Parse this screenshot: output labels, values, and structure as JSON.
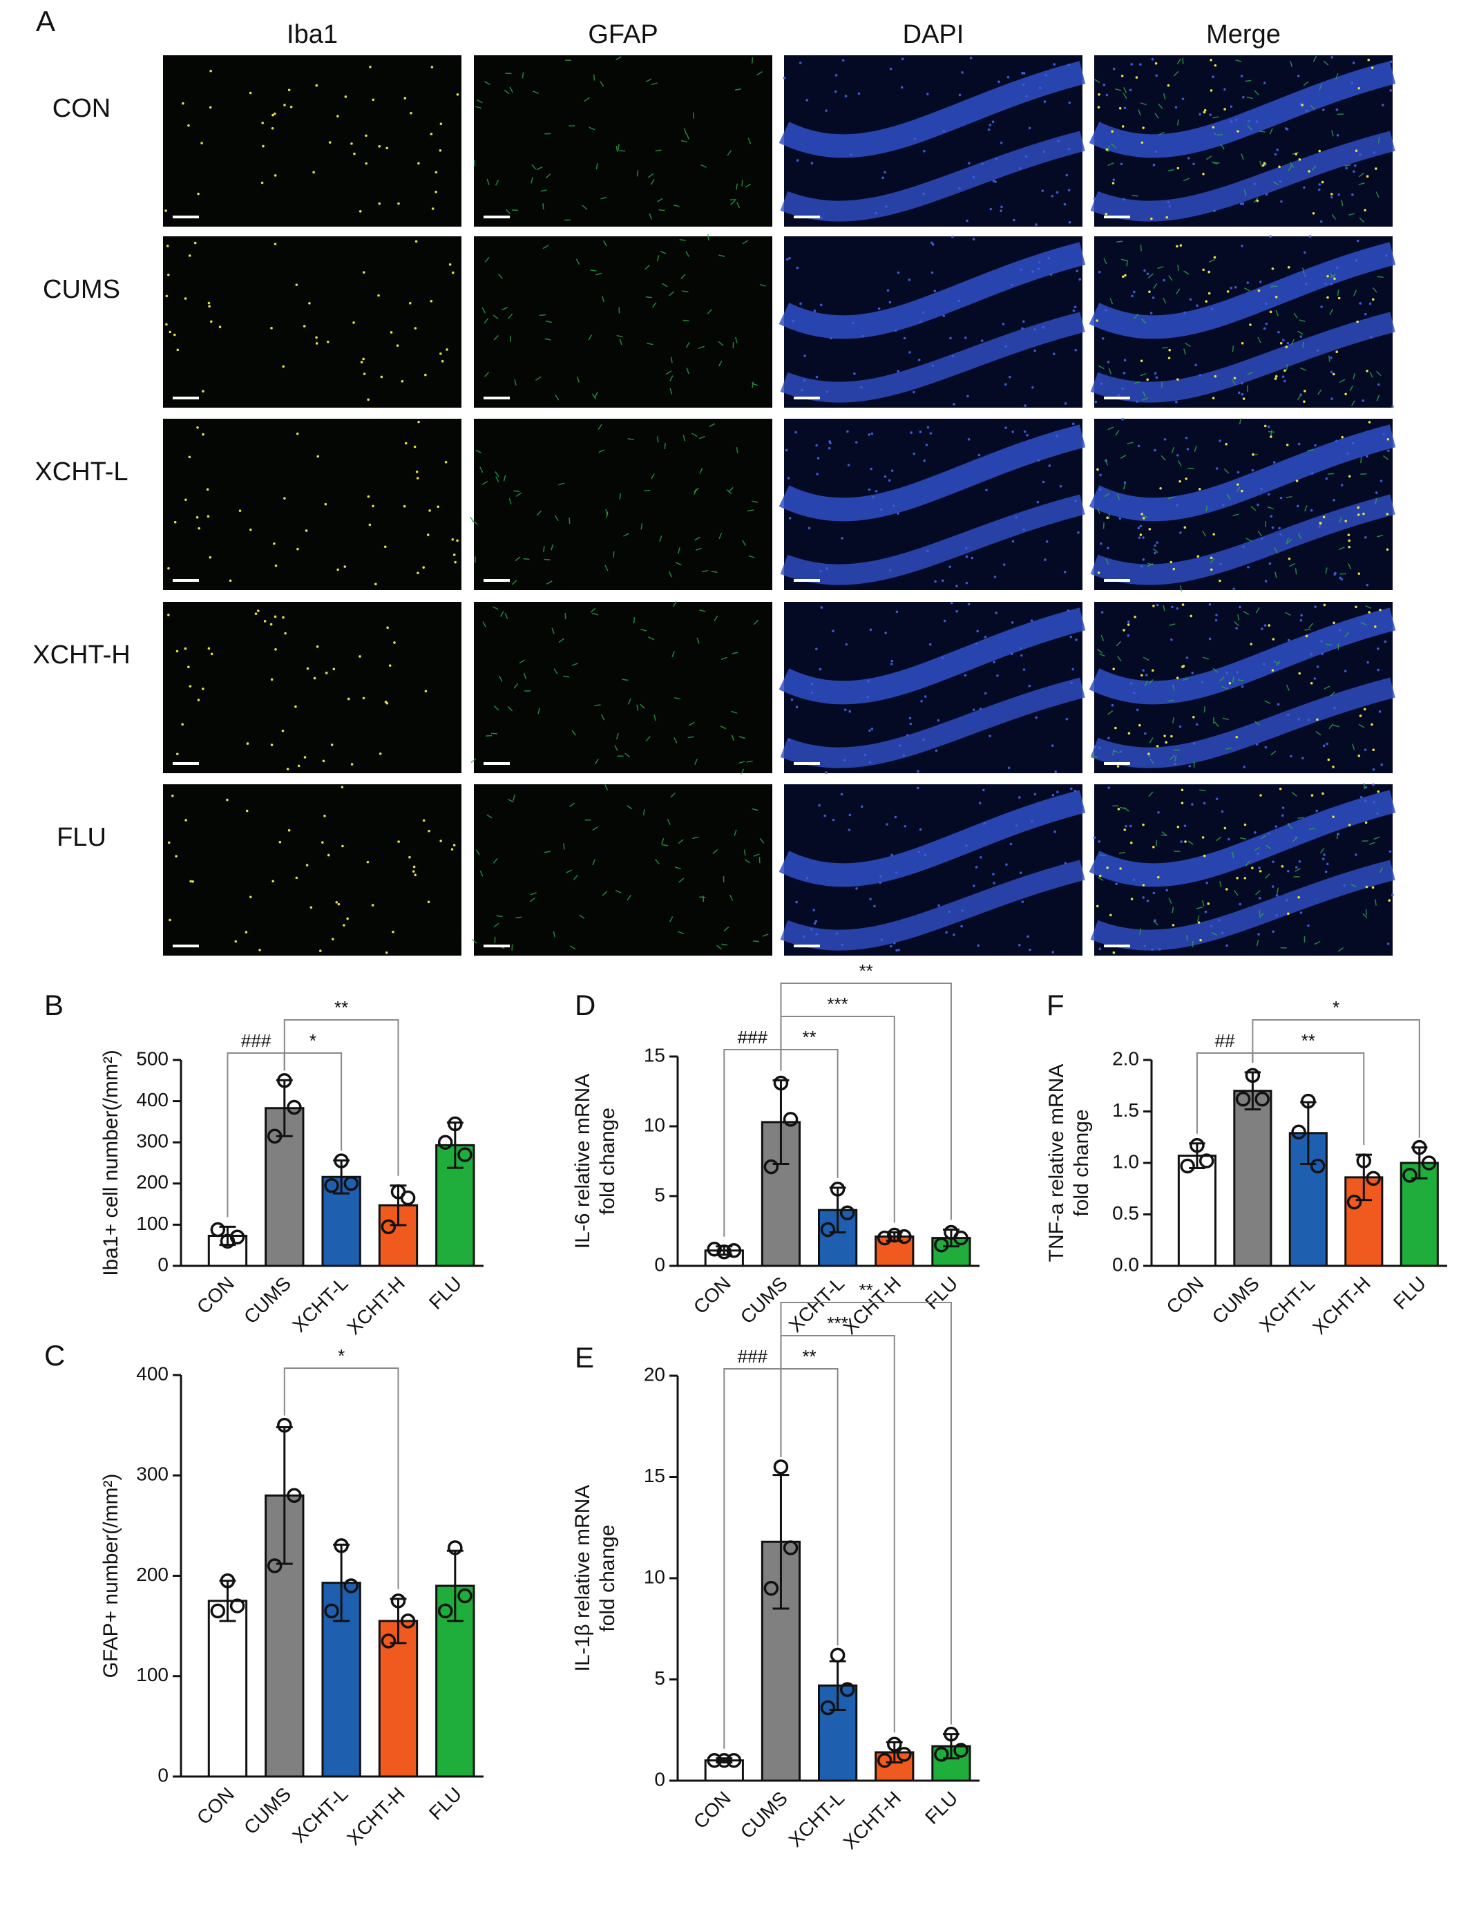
{
  "panel_a": {
    "label": "A",
    "columns": [
      {
        "name": "Iba1",
        "color": "#d8cc3c"
      },
      {
        "name": "GFAP",
        "color": "#2a9a3a"
      },
      {
        "name": "DAPI",
        "color": "#2b3a9a"
      },
      {
        "name": "Merge",
        "color": "#111111"
      }
    ],
    "rows": [
      "CON",
      "CUMS",
      "XCHT-L",
      "XCHT-H",
      "FLU"
    ]
  },
  "chart_data": [
    {
      "type": "bar",
      "panel": "B",
      "ylabel": [
        "Iba1+ cell number(/mm²)"
      ],
      "categories": [
        "CON",
        "CUMS",
        "XCHT-L",
        "XCHT-H",
        "FLU"
      ],
      "colors": [
        "#ffffff",
        "#808080",
        "#1f5fb0",
        "#f05a1e",
        "#1fae3c"
      ],
      "values": [
        73,
        383,
        216,
        147,
        293
      ],
      "errors": [
        22,
        68,
        40,
        48,
        55
      ],
      "points": [
        [
          60,
          88,
          70
        ],
        [
          450,
          315,
          385
        ],
        [
          255,
          195,
          200
        ],
        [
          180,
          95,
          165
        ],
        [
          345,
          300,
          270
        ]
      ],
      "ylim": [
        0,
        500
      ],
      "yticks": [
        0,
        100,
        200,
        300,
        400,
        500
      ],
      "annotations": [
        {
          "text": "###",
          "from": "CON",
          "to": "CUMS"
        },
        {
          "text": "*",
          "from": "CUMS",
          "to": "XCHT-L"
        },
        {
          "text": "**",
          "from": "CUMS",
          "to": "XCHT-H"
        }
      ]
    },
    {
      "type": "bar",
      "panel": "C",
      "ylabel": [
        "GFAP+ number(/mm²)"
      ],
      "categories": [
        "CON",
        "CUMS",
        "XCHT-L",
        "XCHT-H",
        "FLU"
      ],
      "colors": [
        "#ffffff",
        "#808080",
        "#1f5fb0",
        "#f05a1e",
        "#1fae3c"
      ],
      "values": [
        175,
        280,
        193,
        155,
        190
      ],
      "errors": [
        20,
        68,
        38,
        22,
        35
      ],
      "points": [
        [
          195,
          165,
          170
        ],
        [
          350,
          210,
          280
        ],
        [
          230,
          165,
          190
        ],
        [
          175,
          135,
          155
        ],
        [
          228,
          165,
          180
        ]
      ],
      "ylim": [
        0,
        400
      ],
      "yticks": [
        0,
        100,
        200,
        300,
        400
      ],
      "annotations": [
        {
          "text": "*",
          "from": "CUMS",
          "to": "XCHT-H"
        }
      ]
    },
    {
      "type": "bar",
      "panel": "D",
      "ylabel": [
        "IL-6 relative mRNA",
        "fold change"
      ],
      "categories": [
        "CON",
        "CUMS",
        "XCHT-L",
        "XCHT-H",
        "FLU"
      ],
      "colors": [
        "#ffffff",
        "#808080",
        "#1f5fb0",
        "#f05a1e",
        "#1fae3c"
      ],
      "values": [
        1.1,
        10.3,
        4.0,
        2.1,
        2.0
      ],
      "errors": [
        0.3,
        3.0,
        1.6,
        0.3,
        0.6
      ],
      "points": [
        [
          1.0,
          1.2,
          1.1
        ],
        [
          13.1,
          7.1,
          10.5
        ],
        [
          5.5,
          2.6,
          3.8
        ],
        [
          2.2,
          2.0,
          2.1
        ],
        [
          2.4,
          1.5,
          2.0
        ]
      ],
      "ylim": [
        0,
        15
      ],
      "yticks": [
        0,
        5,
        10,
        15
      ],
      "annotations": [
        {
          "text": "###",
          "from": "CON",
          "to": "CUMS"
        },
        {
          "text": "**",
          "from": "CUMS",
          "to": "XCHT-L"
        },
        {
          "text": "***",
          "from": "CUMS",
          "to": "XCHT-H"
        },
        {
          "text": "**",
          "from": "CUMS",
          "to": "FLU"
        }
      ]
    },
    {
      "type": "bar",
      "panel": "E",
      "ylabel": [
        "IL-1β relative mRNA",
        "fold change"
      ],
      "categories": [
        "CON",
        "CUMS",
        "XCHT-L",
        "XCHT-H",
        "FLU"
      ],
      "colors": [
        "#ffffff",
        "#808080",
        "#1f5fb0",
        "#f05a1e",
        "#1fae3c"
      ],
      "values": [
        1.0,
        11.8,
        4.7,
        1.4,
        1.7
      ],
      "errors": [
        0.1,
        3.3,
        1.2,
        0.5,
        0.6
      ],
      "points": [
        [
          1.0,
          1.0,
          1.0
        ],
        [
          15.5,
          9.5,
          11.5
        ],
        [
          6.2,
          3.6,
          4.5
        ],
        [
          1.8,
          1.0,
          1.3
        ],
        [
          2.3,
          1.3,
          1.5
        ]
      ],
      "ylim": [
        0,
        20
      ],
      "yticks": [
        0,
        5,
        10,
        15,
        20
      ],
      "annotations": [
        {
          "text": "###",
          "from": "CON",
          "to": "CUMS"
        },
        {
          "text": "**",
          "from": "CUMS",
          "to": "XCHT-L"
        },
        {
          "text": "***",
          "from": "CUMS",
          "to": "XCHT-H"
        },
        {
          "text": "**",
          "from": "CUMS",
          "to": "FLU"
        }
      ]
    },
    {
      "type": "bar",
      "panel": "F",
      "ylabel": [
        "TNF-a relative mRNA",
        "fold change"
      ],
      "categories": [
        "CON",
        "CUMS",
        "XCHT-L",
        "XCHT-H",
        "FLU"
      ],
      "colors": [
        "#ffffff",
        "#808080",
        "#1f5fb0",
        "#f05a1e",
        "#1fae3c"
      ],
      "values": [
        1.07,
        1.7,
        1.29,
        0.86,
        1.0
      ],
      "errors": [
        0.12,
        0.18,
        0.3,
        0.22,
        0.15
      ],
      "points": [
        [
          1.17,
          0.97,
          1.02
        ],
        [
          1.85,
          1.62,
          1.62
        ],
        [
          1.6,
          1.3,
          0.97
        ],
        [
          1.02,
          0.62,
          0.85
        ],
        [
          1.15,
          0.88,
          1.0
        ]
      ],
      "ylim": [
        0,
        2
      ],
      "yticks": [
        {
          "value": 0,
          "label": "0.0"
        },
        0.5,
        {
          "value": 1,
          "label": "1.0"
        },
        1.5,
        {
          "value": 2,
          "label": "2.0"
        }
      ],
      "annotations": [
        {
          "text": "##",
          "from": "CON",
          "to": "CUMS"
        },
        {
          "text": "**",
          "from": "CUMS",
          "to": "XCHT-H"
        },
        {
          "text": "*",
          "from": "CUMS",
          "to": "FLU"
        }
      ]
    }
  ]
}
